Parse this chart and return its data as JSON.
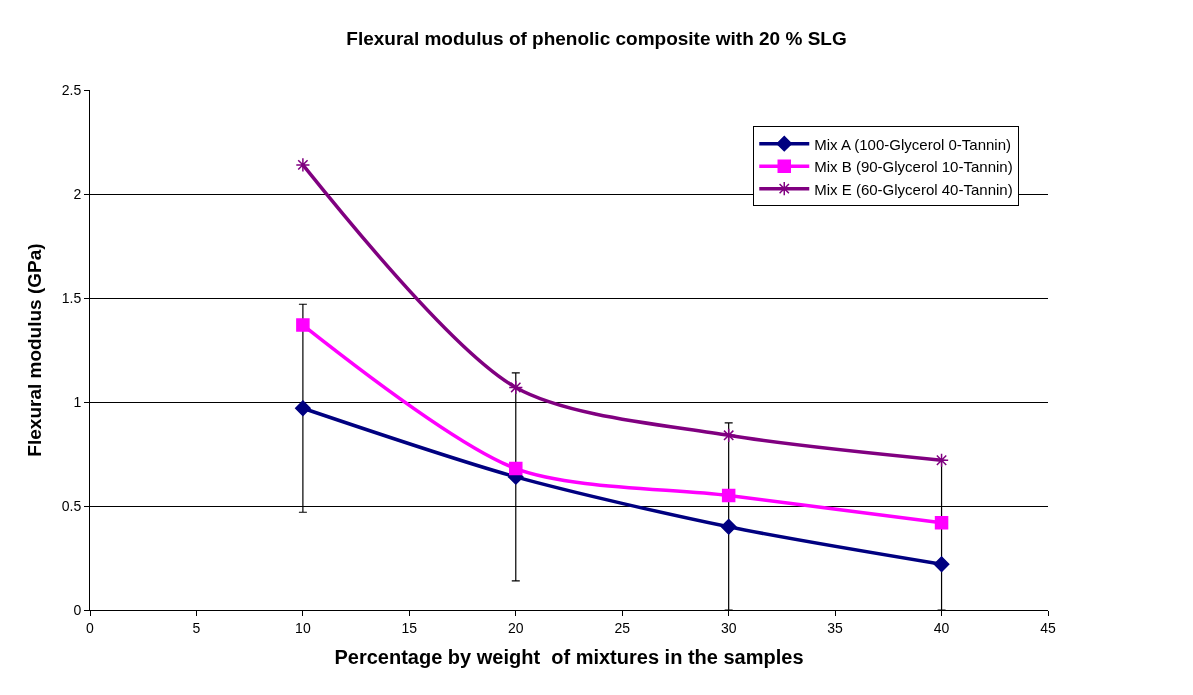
{
  "chart_data": {
    "type": "line",
    "title": "Flexural modulus of phenolic composite with 20 % SLG",
    "xlabel": "Percentage by weight  of mixtures in the samples",
    "ylabel": "Flexural modulus (GPa)",
    "x": [
      10,
      20,
      30,
      40
    ],
    "series": [
      {
        "name": "Mix A (100-Glycerol 0-Tannin)",
        "color": "#000080",
        "marker": "diamond",
        "values": [
          0.97,
          0.64,
          0.4,
          0.22
        ],
        "errors": [
          0.5,
          0.5,
          [
            0,
            0.9
          ],
          [
            0,
            0.72
          ]
        ]
      },
      {
        "name": "Mix B (90-Glycerol 10-Tannin)",
        "color": "#ff00ff",
        "marker": "square",
        "values": [
          1.37,
          0.68,
          0.55,
          0.42
        ]
      },
      {
        "name": "Mix E (60-Glycerol 40-Tannin)",
        "color": "#800080",
        "marker": "cross",
        "values": [
          2.14,
          1.07,
          0.84,
          0.72
        ]
      }
    ],
    "xlim": [
      0,
      45
    ],
    "xticks": [
      0,
      5,
      10,
      15,
      20,
      25,
      30,
      35,
      40,
      45
    ],
    "ylim": [
      0,
      2.5
    ],
    "yticks": [
      0,
      0.5,
      1,
      1.5,
      2,
      2.5
    ],
    "grid": "y",
    "legend": "top right",
    "line_style": "solid"
  }
}
